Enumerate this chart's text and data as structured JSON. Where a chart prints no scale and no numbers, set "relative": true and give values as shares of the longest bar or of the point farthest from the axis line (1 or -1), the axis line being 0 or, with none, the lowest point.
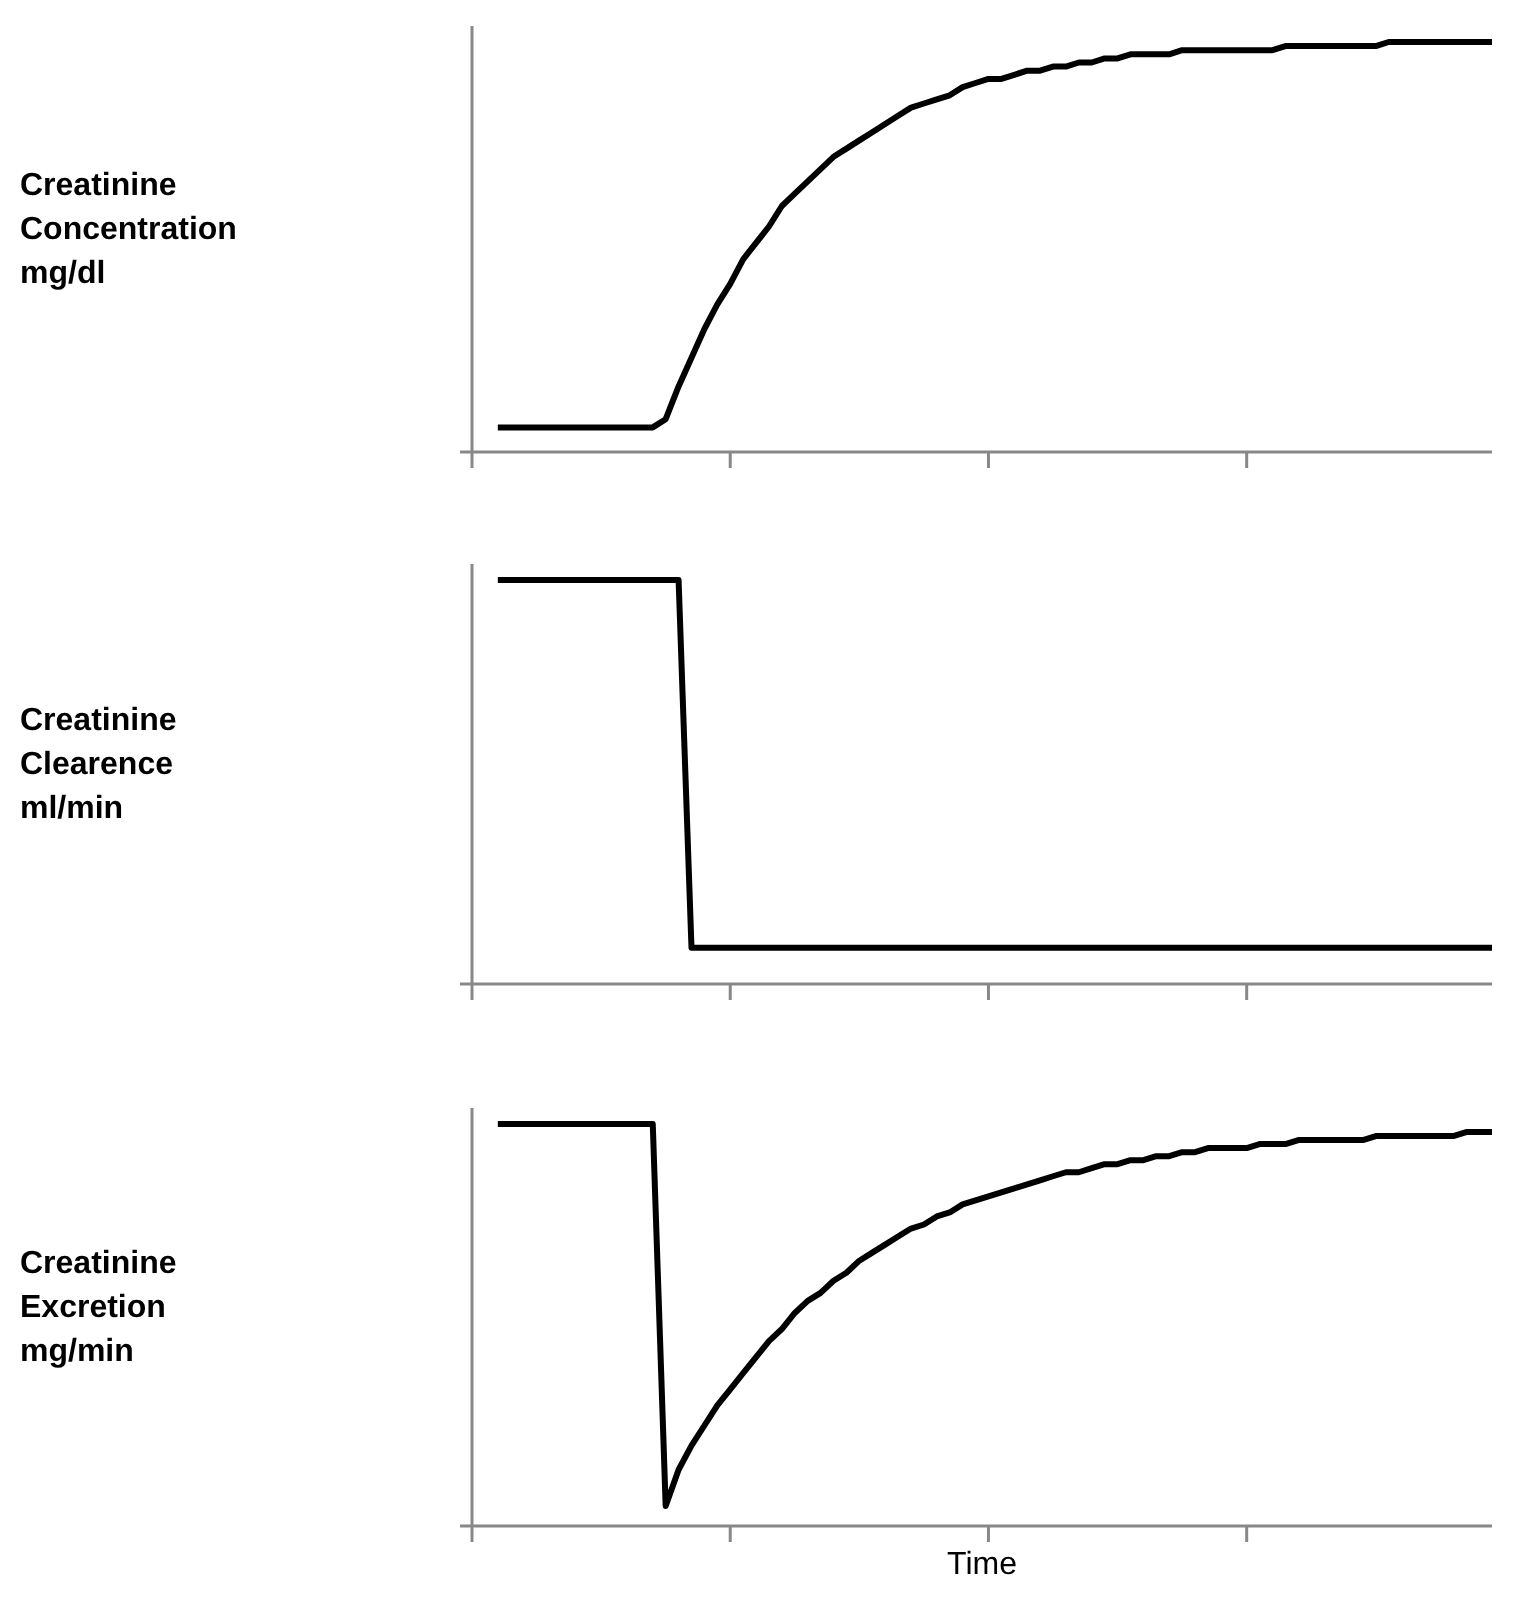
{
  "chart_data": [
    {
      "type": "line",
      "relative": true,
      "ylabel": "Creatinine\nConcentration\nmg/dl",
      "categories": [
        null,
        null,
        null,
        null,
        null,
        null,
        null,
        null,
        null,
        null,
        null,
        null,
        null,
        null,
        null,
        null,
        null,
        null,
        null,
        null,
        null,
        null,
        null,
        null,
        null,
        null,
        null,
        null,
        null,
        null,
        null,
        null,
        null,
        null,
        null,
        null,
        null,
        null,
        null,
        null,
        null,
        null,
        null,
        null,
        null,
        null,
        null,
        null,
        null,
        null,
        null,
        null,
        null,
        null,
        null,
        null,
        null,
        null,
        null,
        null,
        null,
        null,
        null,
        null,
        null,
        null,
        null,
        null,
        null,
        null,
        null,
        null,
        null,
        null,
        null,
        null,
        null,
        null,
        null,
        null
      ],
      "series": [
        {
          "color": "#000000",
          "values": [
            null,
            null,
            0.06,
            0.06,
            0.06,
            0.06,
            0.06,
            0.06,
            0.06,
            0.06,
            0.06,
            0.06,
            0.06,
            0.06,
            0.06,
            0.08,
            0.16,
            0.23,
            0.3,
            0.36,
            0.41,
            0.47,
            0.51,
            0.55,
            0.6,
            0.63,
            0.66,
            0.69,
            0.72,
            0.74,
            0.76,
            0.78,
            0.8,
            0.82,
            0.84,
            0.85,
            0.86,
            0.87,
            0.89,
            0.9,
            0.91,
            0.91,
            0.92,
            0.93,
            0.93,
            0.94,
            0.94,
            0.95,
            0.95,
            0.96,
            0.96,
            0.97,
            0.97,
            0.97,
            0.97,
            0.98,
            0.98,
            0.98,
            0.98,
            0.98,
            0.98,
            0.98,
            0.98,
            0.99,
            0.99,
            0.99,
            0.99,
            0.99,
            0.99,
            0.99,
            0.99,
            1.0,
            1.0,
            1.0,
            1.0,
            1.0,
            1.0,
            1.0,
            1.0,
            1.0
          ]
        }
      ]
    },
    {
      "type": "line",
      "relative": true,
      "ylabel": "Creatinine\nClearence\nml/min",
      "categories": [
        null,
        null,
        null,
        null,
        null,
        null,
        null,
        null,
        null,
        null,
        null,
        null,
        null,
        null,
        null,
        null,
        null,
        null,
        null,
        null,
        null,
        null,
        null,
        null,
        null,
        null,
        null,
        null,
        null,
        null,
        null,
        null,
        null,
        null,
        null,
        null,
        null,
        null,
        null,
        null,
        null,
        null,
        null,
        null,
        null,
        null,
        null,
        null,
        null,
        null,
        null,
        null,
        null,
        null,
        null,
        null,
        null,
        null,
        null,
        null,
        null,
        null,
        null,
        null,
        null,
        null,
        null,
        null,
        null,
        null,
        null,
        null,
        null,
        null,
        null,
        null,
        null,
        null,
        null,
        null
      ],
      "series": [
        {
          "color": "#000000",
          "values": [
            null,
            null,
            1.0,
            1.0,
            1.0,
            1.0,
            1.0,
            1.0,
            1.0,
            1.0,
            1.0,
            1.0,
            1.0,
            1.0,
            1.0,
            1.0,
            1.0,
            0.09,
            0.09,
            0.09,
            0.09,
            0.09,
            0.09,
            0.09,
            0.09,
            0.09,
            0.09,
            0.09,
            0.09,
            0.09,
            0.09,
            0.09,
            0.09,
            0.09,
            0.09,
            0.09,
            0.09,
            0.09,
            0.09,
            0.09,
            0.09,
            0.09,
            0.09,
            0.09,
            0.09,
            0.09,
            0.09,
            0.09,
            0.09,
            0.09,
            0.09,
            0.09,
            0.09,
            0.09,
            0.09,
            0.09,
            0.09,
            0.09,
            0.09,
            0.09,
            0.09,
            0.09,
            0.09,
            0.09,
            0.09,
            0.09,
            0.09,
            0.09,
            0.09,
            0.09,
            0.09,
            0.09,
            0.09,
            0.09,
            0.09,
            0.09,
            0.09,
            0.09,
            0.09,
            0.09
          ]
        }
      ]
    },
    {
      "type": "line",
      "relative": true,
      "ylabel": "Creatinine\nExcretion\nmg/min",
      "xlabel": "Time",
      "categories": [
        null,
        null,
        null,
        null,
        null,
        null,
        null,
        null,
        null,
        null,
        null,
        null,
        null,
        null,
        null,
        null,
        null,
        null,
        null,
        null,
        null,
        null,
        null,
        null,
        null,
        null,
        null,
        null,
        null,
        null,
        null,
        null,
        null,
        null,
        null,
        null,
        null,
        null,
        null,
        null,
        null,
        null,
        null,
        null,
        null,
        null,
        null,
        null,
        null,
        null,
        null,
        null,
        null,
        null,
        null,
        null,
        null,
        null,
        null,
        null,
        null,
        null,
        null,
        null,
        null,
        null,
        null,
        null,
        null,
        null,
        null,
        null,
        null,
        null,
        null,
        null,
        null,
        null,
        null,
        null
      ],
      "series": [
        {
          "color": "#000000",
          "values": [
            null,
            null,
            1.0,
            1.0,
            1.0,
            1.0,
            1.0,
            1.0,
            1.0,
            1.0,
            1.0,
            1.0,
            1.0,
            1.0,
            1.0,
            0.05,
            0.14,
            0.2,
            0.25,
            0.3,
            0.34,
            0.38,
            0.42,
            0.46,
            0.49,
            0.53,
            0.56,
            0.58,
            0.61,
            0.63,
            0.66,
            0.68,
            0.7,
            0.72,
            0.74,
            0.75,
            0.77,
            0.78,
            0.8,
            0.81,
            0.82,
            0.83,
            0.84,
            0.85,
            0.86,
            0.87,
            0.88,
            0.88,
            0.89,
            0.9,
            0.9,
            0.91,
            0.91,
            0.92,
            0.92,
            0.93,
            0.93,
            0.94,
            0.94,
            0.94,
            0.94,
            0.95,
            0.95,
            0.95,
            0.96,
            0.96,
            0.96,
            0.96,
            0.96,
            0.96,
            0.97,
            0.97,
            0.97,
            0.97,
            0.97,
            0.97,
            0.97,
            0.98,
            0.98,
            0.98
          ]
        }
      ]
    }
  ]
}
